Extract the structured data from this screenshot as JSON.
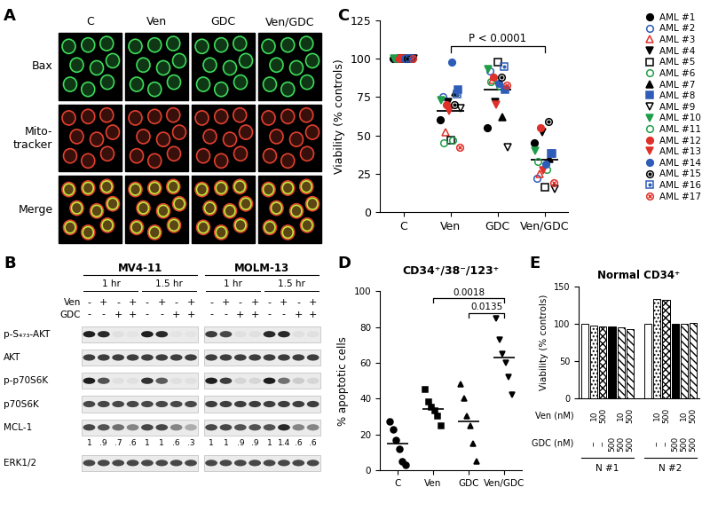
{
  "images": {
    "panel": "A",
    "columns": [
      "C",
      "Ven",
      "GDC",
      "Ven/GDC"
    ],
    "rows": [
      "Bax",
      "Mito-\ntracker",
      "Merge"
    ]
  },
  "western_blot": {
    "panel": "B",
    "cell_lines": [
      "MV4-11",
      "MOLM-13"
    ],
    "times": [
      "1 hr",
      "1.5 hr"
    ],
    "treatments": [
      {
        "name": "Ven",
        "signs": [
          "-",
          "+",
          "-",
          "+",
          "-",
          "+",
          "-",
          "+"
        ]
      },
      {
        "name": "GDC",
        "signs": [
          "-",
          "-",
          "+",
          "+",
          "-",
          "-",
          "+",
          "+"
        ]
      }
    ],
    "blots": [
      {
        "name": "p-S₄₇₃-AKT",
        "intensity": {
          "MV4-11": [
            1,
            0.95,
            0.05,
            0.03,
            1,
            0.95,
            0.03,
            0.03
          ],
          "MOLM-13": [
            0.85,
            0.8,
            0.05,
            0.05,
            0.95,
            0.95,
            0.05,
            0.05
          ]
        }
      },
      {
        "name": "AKT",
        "intensity": {
          "MV4-11": [
            0.85,
            0.85,
            0.85,
            0.85,
            0.85,
            0.85,
            0.85,
            0.85
          ],
          "MOLM-13": [
            0.85,
            0.85,
            0.85,
            0.85,
            0.85,
            0.85,
            0.85,
            0.85
          ]
        }
      },
      {
        "name": "p-p70S6K",
        "intensity": {
          "MV4-11": [
            1,
            0.75,
            0.05,
            0.05,
            0.9,
            0.7,
            0.05,
            0.05
          ],
          "MOLM-13": [
            1,
            0.85,
            0.1,
            0.1,
            1,
            0.6,
            0.15,
            0.1
          ]
        }
      },
      {
        "name": "p70S6K",
        "intensity": {
          "MV4-11": [
            0.8,
            0.8,
            0.8,
            0.8,
            0.8,
            0.8,
            0.8,
            0.8
          ],
          "MOLM-13": [
            0.85,
            0.85,
            0.85,
            0.85,
            0.85,
            0.85,
            0.85,
            0.85
          ]
        }
      },
      {
        "name": "MCL-1",
        "intensity": {
          "MV4-11": [
            0.8,
            0.75,
            0.6,
            0.5,
            0.8,
            0.8,
            0.5,
            0.3
          ],
          "MOLM-13": [
            0.8,
            0.8,
            0.75,
            0.75,
            0.75,
            0.95,
            0.5,
            0.5
          ]
        },
        "quantification": {
          "MV4-11": [
            "1",
            ".9",
            ".7",
            ".6",
            "1",
            "1",
            ".6",
            ".3"
          ],
          "MOLM-13": [
            "1",
            "1",
            ".9",
            ".9",
            "1",
            "1.4",
            ".6",
            ".6"
          ]
        }
      },
      {
        "name": "ERK1/2",
        "intensity": {
          "MV4-11": [
            0.8,
            0.8,
            0.8,
            0.8,
            0.8,
            0.8,
            0.8,
            0.8
          ],
          "MOLM-13": [
            0.8,
            0.8,
            0.8,
            0.8,
            0.8,
            0.8,
            0.8,
            0.8
          ]
        }
      }
    ]
  },
  "chart_data": [
    {
      "panel": "C",
      "type": "scatter",
      "ylabel": "Viability (% controls)",
      "categories": [
        "C",
        "Ven",
        "GDC",
        "Ven/GDC"
      ],
      "ylim": [
        0,
        125
      ],
      "yticks": [
        0,
        25,
        50,
        75,
        100,
        125
      ],
      "legend": "upper right",
      "series": [
        {
          "name": "AML #1",
          "color": "#000000",
          "marker": "circle",
          "values": [
            100,
            60,
            55,
            45
          ]
        },
        {
          "name": "AML #2",
          "color": "#2e5cb8",
          "marker": "open_circle",
          "values": [
            100,
            75,
            92,
            22
          ]
        },
        {
          "name": "AML #3",
          "color": "#e0302a",
          "marker": "open_triangle",
          "values": [
            100,
            52,
            86,
            25
          ]
        },
        {
          "name": "AML #4",
          "color": "#000000",
          "marker": "triangle_down",
          "values": [
            100,
            72,
            72,
            52
          ]
        },
        {
          "name": "AML #5",
          "color": "#000000",
          "marker": "open_square",
          "values": [
            100,
            47,
            98,
            16
          ]
        },
        {
          "name": "AML #6",
          "color": "#1f9e4a",
          "marker": "open_circle",
          "values": [
            100,
            47,
            82,
            28
          ]
        },
        {
          "name": "AML #7",
          "color": "#000000",
          "marker": "triangle",
          "values": [
            100,
            78,
            62,
            35
          ]
        },
        {
          "name": "AML #8",
          "color": "#2e5cb8",
          "marker": "square",
          "values": [
            100,
            80,
            80,
            38
          ]
        },
        {
          "name": "AML #9",
          "color": "#000000",
          "marker": "open_triangle_down",
          "values": [
            100,
            68,
            42,
            15
          ]
        },
        {
          "name": "AML #10",
          "color": "#1f9e4a",
          "marker": "triangle_down",
          "values": [
            100,
            73,
            93,
            40
          ]
        },
        {
          "name": "AML #11",
          "color": "#1f9e4a",
          "marker": "open_circle",
          "values": [
            100,
            45,
            85,
            33
          ]
        },
        {
          "name": "AML #12",
          "color": "#e0302a",
          "marker": "circle",
          "values": [
            100,
            70,
            88,
            55
          ]
        },
        {
          "name": "AML #13",
          "color": "#e0302a",
          "marker": "triangle_down",
          "values": [
            100,
            66,
            70,
            27
          ]
        },
        {
          "name": "AML #14",
          "color": "#2e5cb8",
          "marker": "circle",
          "values": [
            100,
            98,
            84,
            31
          ]
        },
        {
          "name": "AML #15",
          "color": "#000000",
          "marker": "circle_dot",
          "values": [
            100,
            70,
            88,
            59
          ]
        },
        {
          "name": "AML #16",
          "color": "#2e5cb8",
          "marker": "square_dot",
          "values": [
            100,
            77,
            95,
            38
          ]
        },
        {
          "name": "AML #17",
          "color": "#e0302a",
          "marker": "circle_cross",
          "values": [
            100,
            42,
            83,
            19
          ]
        }
      ],
      "means": [
        null,
        66,
        80,
        34
      ],
      "annotations": [
        {
          "text": "P < 0.0001",
          "from": "Ven",
          "to": "Ven/GDC"
        }
      ]
    },
    {
      "panel": "D",
      "type": "scatter",
      "title": "CD34⁺/38⁻/123⁺",
      "ylabel": "% apoptotic cells",
      "categories": [
        "C",
        "Ven",
        "GDC",
        "Ven/GDC"
      ],
      "ylim": [
        0,
        100
      ],
      "yticks": [
        0,
        20,
        40,
        60,
        80,
        100
      ],
      "color": "#000000",
      "groups": [
        {
          "marker": "circle",
          "values": [
            27,
            23,
            17,
            12,
            5,
            3
          ]
        },
        {
          "marker": "square",
          "values": [
            45,
            38,
            35,
            33,
            30,
            25
          ]
        },
        {
          "marker": "triangle",
          "values": [
            48,
            40,
            30,
            25,
            15,
            5
          ]
        },
        {
          "marker": "triangle_down",
          "values": [
            85,
            73,
            65,
            60,
            52,
            42
          ]
        }
      ],
      "means": [
        15,
        34,
        27,
        63
      ],
      "annotations": [
        {
          "text": "0.0135",
          "from": "GDC",
          "to": "Ven/GDC"
        },
        {
          "text": "0.0018",
          "from": "Ven",
          "to": "Ven/GDC"
        }
      ]
    },
    {
      "panel": "E",
      "type": "bar",
      "title": "Normal CD34⁺",
      "ylabel": "Viability (% controls)",
      "ylim": [
        0,
        150
      ],
      "yticks": [
        0,
        50,
        100,
        150
      ],
      "tick_labels": "y",
      "groups": [
        "N #1",
        "N #2"
      ],
      "colors": [
        "#ffffff",
        "#ffffff",
        "#ffffff",
        "#000000",
        "#ffffff",
        "#ffffff"
      ],
      "values": [
        [
          100,
          97,
          96,
          96,
          95,
          93
        ],
        [
          100,
          133,
          132,
          100,
          100,
          101
        ]
      ],
      "conditions": [
        {
          "label": "Ven (nM)",
          "values": [
            null,
            "10",
            "500",
            null,
            "10",
            "500"
          ]
        },
        {
          "label": "GDC (nM)",
          "values": [
            null,
            "--",
            "--",
            "500",
            "500",
            "500"
          ]
        }
      ]
    }
  ]
}
